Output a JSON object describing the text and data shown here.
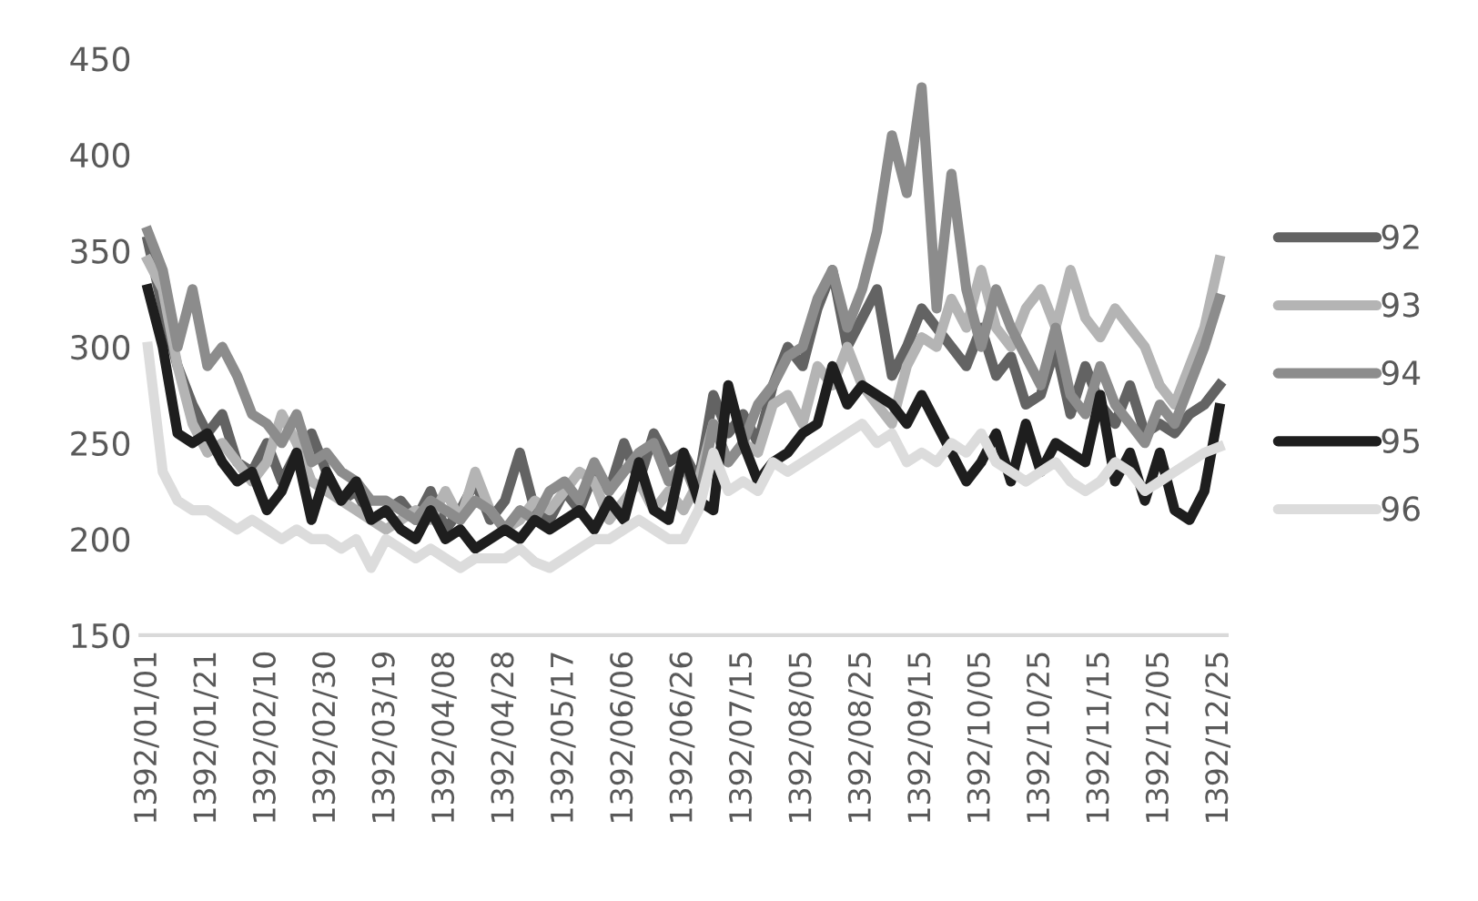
{
  "chart_data": {
    "type": "line",
    "categories": [
      "1392/01/01",
      null,
      null,
      null,
      "1392/01/21",
      null,
      null,
      null,
      "1392/02/10",
      null,
      null,
      null,
      "1392/02/30",
      null,
      null,
      null,
      "1392/03/19",
      null,
      null,
      null,
      "1392/04/08",
      null,
      null,
      null,
      "1392/04/28",
      null,
      null,
      null,
      "1392/05/17",
      null,
      null,
      null,
      "1392/06/06",
      null,
      null,
      null,
      "1392/06/26",
      null,
      null,
      null,
      "1392/07/15",
      null,
      null,
      null,
      "1392/08/05",
      null,
      null,
      null,
      "1392/08/25",
      null,
      null,
      null,
      "1392/09/15",
      null,
      null,
      null,
      "1392/10/05",
      null,
      null,
      null,
      "1392/10/25",
      null,
      null,
      null,
      "1392/11/15",
      null,
      null,
      null,
      "1392/12/05",
      null,
      null,
      null,
      "1392/12/25"
    ],
    "series": [
      {
        "name": "92",
        "color": "#636363",
        "values": [
          355,
          320,
          290,
          270,
          255,
          265,
          240,
          235,
          250,
          230,
          245,
          255,
          235,
          220,
          225,
          210,
          215,
          220,
          210,
          225,
          205,
          215,
          230,
          210,
          220,
          245,
          215,
          210,
          225,
          215,
          235,
          225,
          250,
          230,
          255,
          240,
          245,
          230,
          275,
          255,
          265,
          250,
          280,
          300,
          290,
          320,
          340,
          300,
          315,
          330,
          285,
          300,
          320,
          310,
          300,
          290,
          310,
          285,
          295,
          270,
          275,
          300,
          265,
          290,
          270,
          260,
          280,
          255,
          260,
          255,
          265,
          270,
          280
        ]
      },
      {
        "name": "93",
        "color": "#b4b4b4",
        "values": [
          345,
          330,
          290,
          260,
          245,
          250,
          240,
          230,
          240,
          265,
          250,
          230,
          225,
          220,
          215,
          210,
          205,
          210,
          215,
          210,
          225,
          210,
          235,
          215,
          205,
          210,
          220,
          215,
          225,
          235,
          230,
          210,
          220,
          230,
          215,
          225,
          215,
          230,
          260,
          240,
          250,
          245,
          270,
          275,
          260,
          290,
          280,
          300,
          280,
          270,
          260,
          290,
          305,
          300,
          325,
          310,
          340,
          310,
          300,
          320,
          330,
          310,
          340,
          315,
          305,
          320,
          310,
          300,
          280,
          270,
          290,
          310,
          345
        ]
      },
      {
        "name": "94",
        "color": "#8c8c8c",
        "values": [
          360,
          340,
          300,
          330,
          290,
          300,
          285,
          265,
          260,
          250,
          265,
          240,
          245,
          235,
          230,
          220,
          220,
          215,
          210,
          220,
          215,
          210,
          220,
          215,
          205,
          215,
          210,
          225,
          230,
          220,
          240,
          225,
          235,
          245,
          250,
          230,
          240,
          220,
          260,
          240,
          250,
          270,
          280,
          295,
          300,
          325,
          340,
          310,
          330,
          360,
          410,
          380,
          435,
          320,
          390,
          330,
          300,
          330,
          310,
          295,
          280,
          310,
          275,
          265,
          290,
          270,
          260,
          250,
          270,
          260,
          280,
          300,
          325
        ]
      },
      {
        "name": "95",
        "color": "#1e1e1e",
        "values": [
          330,
          300,
          255,
          250,
          255,
          240,
          230,
          235,
          215,
          225,
          245,
          210,
          235,
          220,
          230,
          210,
          215,
          205,
          200,
          215,
          200,
          205,
          195,
          200,
          205,
          200,
          210,
          205,
          210,
          215,
          205,
          220,
          210,
          240,
          215,
          210,
          245,
          220,
          215,
          280,
          250,
          230,
          240,
          245,
          255,
          260,
          290,
          270,
          280,
          275,
          270,
          260,
          275,
          260,
          245,
          230,
          240,
          255,
          230,
          260,
          235,
          250,
          245,
          240,
          275,
          230,
          245,
          220,
          245,
          215,
          210,
          225,
          268
        ]
      },
      {
        "name": "96",
        "color": "#dcdcdc",
        "values": [
          300,
          235,
          220,
          215,
          215,
          210,
          205,
          210,
          205,
          200,
          205,
          200,
          200,
          195,
          200,
          185,
          200,
          195,
          190,
          195,
          190,
          185,
          190,
          190,
          190,
          195,
          188,
          185,
          190,
          195,
          200,
          200,
          205,
          210,
          205,
          200,
          200,
          215,
          245,
          225,
          230,
          225,
          240,
          235,
          240,
          245,
          250,
          255,
          260,
          250,
          255,
          240,
          245,
          240,
          250,
          245,
          255,
          240,
          235,
          230,
          235,
          240,
          230,
          225,
          230,
          240,
          235,
          225,
          230,
          235,
          240,
          245,
          248
        ]
      }
    ],
    "ylim": [
      150,
      450
    ],
    "yticks": [
      150,
      200,
      250,
      300,
      350,
      400,
      450
    ],
    "grid": false,
    "legend": "right",
    "marker": "none",
    "line_style": "solid"
  }
}
